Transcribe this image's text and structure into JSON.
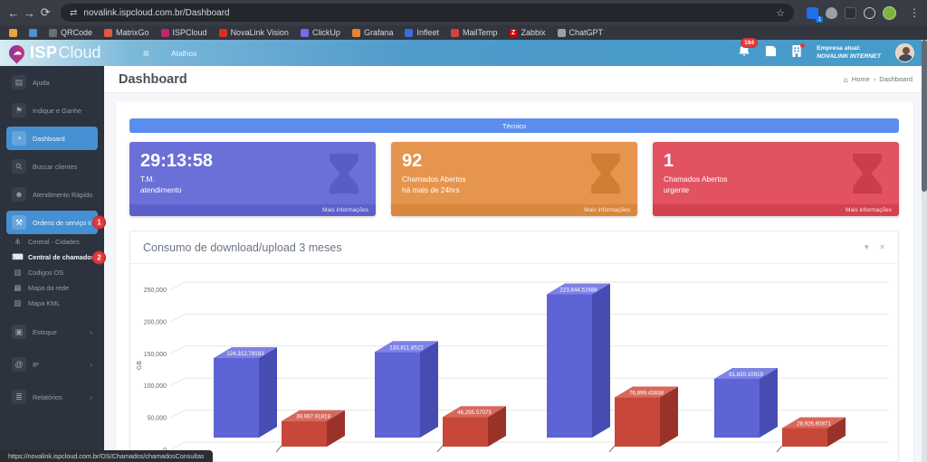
{
  "browser": {
    "url": "novalink.ispcloud.com.br/Dashboard",
    "extension_badge": "1",
    "bookmarks": [
      {
        "label": "",
        "color": "#e8a33d",
        "letter": ""
      },
      {
        "label": "",
        "color": "#4f8fd0",
        "letter": ""
      },
      {
        "label": "QRCode",
        "color": "#6b7077",
        "letter": ""
      },
      {
        "label": "MatrixGo",
        "color": "#e05a3a",
        "letter": ""
      },
      {
        "label": "ISPCloud",
        "color": "#c2256e",
        "letter": ""
      },
      {
        "label": "NovaLink Vision",
        "color": "#d93025",
        "letter": ""
      },
      {
        "label": "ClickUp",
        "color": "#7b68ee",
        "letter": ""
      },
      {
        "label": "Grafana",
        "color": "#e8842d",
        "letter": ""
      },
      {
        "label": "Infleet",
        "color": "#3a6fd8",
        "letter": ""
      },
      {
        "label": "MailTemp",
        "color": "#d94040",
        "letter": ""
      },
      {
        "label": "Zabbix",
        "color": "#d40000",
        "letter": "Z"
      },
      {
        "label": "ChatGPT",
        "color": "#9aa0a6",
        "letter": ""
      }
    ],
    "status_url": "https://novalink.ispcloud.com.br/OS/Chamados/chamadosConsultas"
  },
  "icons": {
    "back": "←",
    "forward": "→",
    "reload": "⟳",
    "site": "⇄",
    "star": "☆",
    "menu": "⋮",
    "hamburger": "≡",
    "home": "⌂",
    "filter": "▼",
    "close": "✕",
    "breadcrumb_sep": "›",
    "cloud": "☁"
  },
  "navbar": {
    "logo_isp": "ISP",
    "logo_cloud": "Cloud",
    "shortcut_label": "Atalhos",
    "notification_count": "194",
    "company_label": "Empresa atual:",
    "company_name": "NOVALINK INTERNET"
  },
  "sidebar": {
    "items": [
      {
        "label": "Ajuda",
        "icon": "book-icon",
        "glyph": "▤",
        "type": "main"
      },
      {
        "label": "Indique e Ganhe",
        "icon": "megaphone-icon",
        "glyph": "⚑",
        "type": "main"
      },
      {
        "label": "Dashboard",
        "icon": "gauge-icon",
        "glyph": "◔",
        "type": "main",
        "active": true
      },
      {
        "label": "Buscar clientes",
        "icon": "search-icon",
        "glyph": "⚲",
        "type": "main",
        "rotate": true
      },
      {
        "label": "Atendimento Rápido",
        "icon": "users-icon",
        "glyph": "☻",
        "type": "main"
      },
      {
        "label": "Ordens de serviço",
        "icon": "wrench-icon",
        "glyph": "⚒",
        "type": "main",
        "active": true,
        "chevron": "∨",
        "badge": "1"
      },
      {
        "label": "Central - Cidades",
        "icon": "sitemap-icon",
        "glyph": "⋔",
        "type": "sub"
      },
      {
        "label": "Central de chamados",
        "icon": "laptop-icon",
        "glyph": "⌨",
        "type": "sub",
        "highlight": true,
        "badge": "2"
      },
      {
        "label": "Codigos OS",
        "icon": "barcode-icon",
        "glyph": "▥",
        "type": "sub"
      },
      {
        "label": "Mapa da rede",
        "icon": "map-icon",
        "glyph": "▦",
        "type": "sub"
      },
      {
        "label": "Mapa KML",
        "icon": "map-kml-icon",
        "glyph": "▧",
        "type": "sub"
      },
      {
        "label": "Estoque",
        "icon": "box-icon",
        "glyph": "▣",
        "type": "main2",
        "chevron": "›"
      },
      {
        "label": "IP",
        "icon": "ip-icon",
        "glyph": "@",
        "type": "main2",
        "chevron": "›"
      },
      {
        "label": "Relatórios",
        "icon": "report-icon",
        "glyph": "≣",
        "type": "main2",
        "chevron": "›"
      }
    ]
  },
  "page": {
    "title": "Dashboard",
    "breadcrumb": {
      "home": "Home",
      "current": "Dashboard"
    },
    "banner": "Técnico",
    "cards": [
      {
        "value": "29:13:58",
        "line1": "T.M.",
        "line2": "atendimento",
        "footer": "Mais informações",
        "bg": "#6b6fd8",
        "footer_bg": "#5c60cb",
        "icon_color": "#585dc6"
      },
      {
        "value": "92",
        "line1": "Chamados Abertos",
        "line2": "há mais de 24hrs",
        "footer": "Mais informações",
        "bg": "#e6954e",
        "footer_bg": "#d9873c",
        "icon_color": "#cf7f33"
      },
      {
        "value": "1",
        "line1": "Chamados Abertos",
        "line2": "urgente",
        "footer": "Mais informações",
        "bg": "#e25260",
        "footer_bg": "#d4414f",
        "icon_color": "#cb3d4c"
      }
    ]
  },
  "chart_data": {
    "type": "bar",
    "style": "3d-column",
    "title": "Consumo de download/upload 3 meses",
    "xlabel": "",
    "ylabel": "GB",
    "ylim": [
      0,
      250000
    ],
    "y_tick_step": 50000,
    "y_ticks": [
      "0",
      "50,000",
      "100,000",
      "150,000",
      "200,000",
      "250,000"
    ],
    "categories": [
      "",
      "",
      "",
      ""
    ],
    "grid": true,
    "legend": "none",
    "series": [
      {
        "name": "download",
        "color": "#5e63d6",
        "color_top": "#7e82e4",
        "color_side": "#474cb2",
        "values": [
          124312.78183,
          133811.8522,
          223844.52488,
          91820.10919
        ],
        "labels": [
          "124,312.78183",
          "133,811.8522",
          "223,844.52488",
          "91,820.10919"
        ]
      },
      {
        "name": "upload",
        "color": "#c7473a",
        "color_top": "#d8685c",
        "color_side": "#99332a",
        "values": [
          39967.91819,
          46295.57075,
          76899.43838,
          28926.60871
        ],
        "labels": [
          "39,967.91819",
          "46,295.57075",
          "76,899.43838",
          "28,926.60871"
        ]
      }
    ]
  }
}
